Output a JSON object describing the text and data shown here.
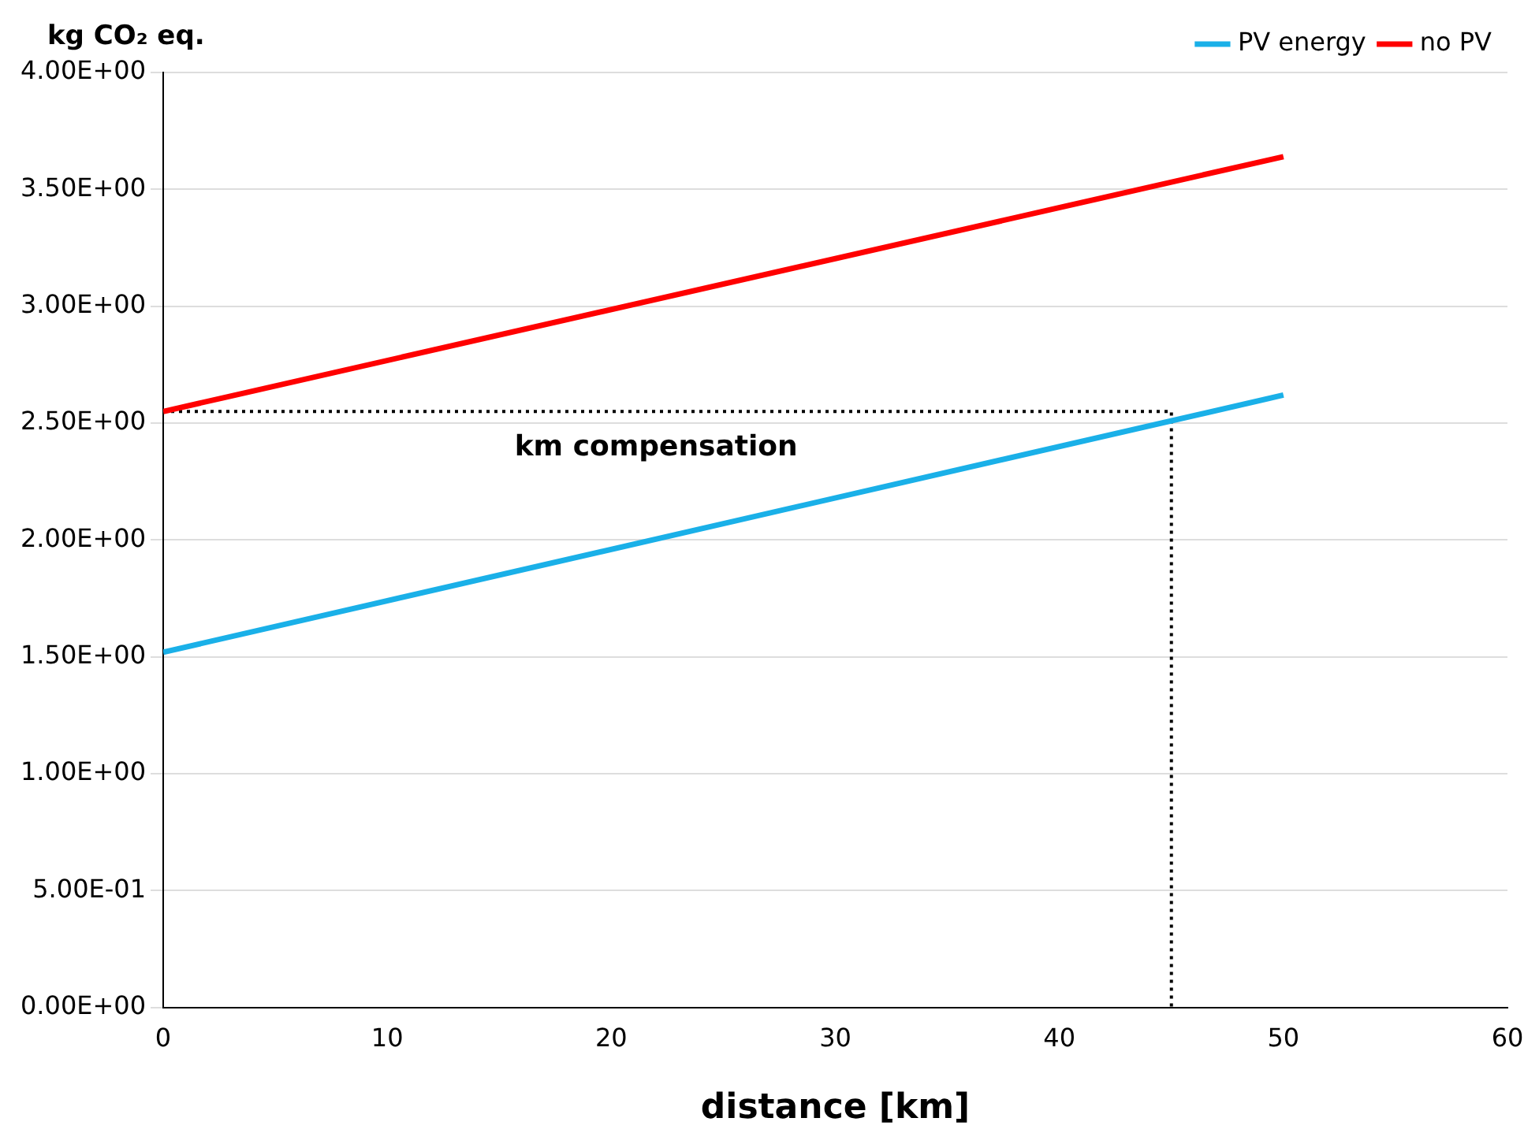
{
  "chart_data": {
    "type": "line",
    "xlabel": "distance [km]",
    "ylabel": "kg CO₂ eq.",
    "series": [
      {
        "name": "PV energy",
        "color": "#1ab0e8",
        "x": [
          0,
          50
        ],
        "values": [
          1.52,
          2.62
        ]
      },
      {
        "name": "no PV",
        "color": "#ff0000",
        "x": [
          0,
          50
        ],
        "values": [
          2.55,
          3.64
        ]
      },
      {
        "color": "#000000",
        "x": [
          0,
          45,
          45
        ],
        "values": [
          2.55,
          2.55,
          0
        ],
        "line_style": "dotted"
      }
    ],
    "annotations": [
      {
        "text": "km compensation",
        "x": 22,
        "y": 2.55
      }
    ],
    "xlim": [
      0,
      60
    ],
    "xticks": [
      0,
      10,
      20,
      30,
      40,
      50,
      60
    ],
    "ylim": [
      0,
      4
    ],
    "yticks": [
      {
        "value": 0,
        "label": "0.00E+00"
      },
      {
        "value": 0.5,
        "label": "5.00E-01"
      },
      {
        "value": 1,
        "label": "1.00E+00"
      },
      {
        "value": 1.5,
        "label": "1.50E+00"
      },
      {
        "value": 2,
        "label": "2.00E+00"
      },
      {
        "value": 2.5,
        "label": "2.50E+00"
      },
      {
        "value": 3,
        "label": "3.00E+00"
      },
      {
        "value": 3.5,
        "label": "3.50E+00"
      },
      {
        "value": 4,
        "label": "4.00E+00"
      }
    ],
    "grid": "y",
    "legend": "top right",
    "marker": "none",
    "line_style": "solid"
  }
}
